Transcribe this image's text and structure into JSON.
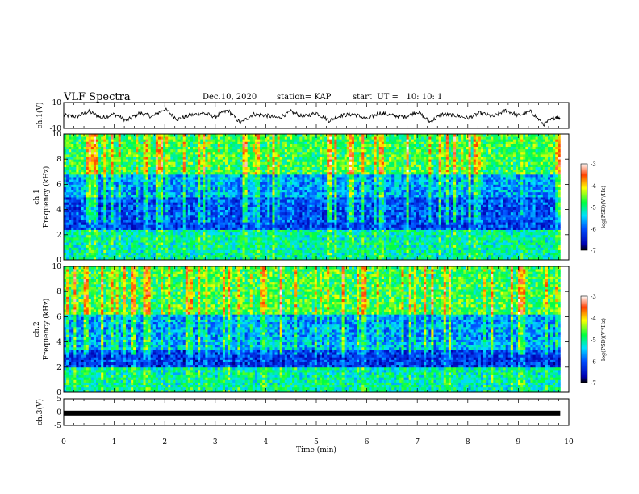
{
  "header": {
    "title": "VLF Spectra",
    "date": "Dec.10, 2020",
    "station": "station= KAP",
    "start": "start  UT =   10: 10: 1"
  },
  "chart_data": [
    {
      "type": "line",
      "ylabel": "ch.1(V)",
      "xlim": [
        0,
        9.83
      ],
      "ylim": [
        -10,
        10
      ],
      "y_ticks": [
        "10",
        "-10"
      ],
      "x": [
        0,
        0.25,
        0.5,
        0.75,
        1,
        1.25,
        1.5,
        1.75,
        2,
        2.25,
        2.5,
        2.75,
        3,
        3.25,
        3.5,
        3.75,
        4,
        4.25,
        4.5,
        4.75,
        5,
        5.25,
        5.5,
        5.75,
        6,
        6.25,
        6.5,
        6.75,
        7,
        7.25,
        7.5,
        7.75,
        8,
        8.25,
        8.5,
        8.75,
        9,
        9.25,
        9.5,
        9.75,
        9.83
      ],
      "y": [
        0,
        -1,
        3,
        -2,
        1,
        -4,
        2,
        -1,
        5,
        -3,
        0,
        2,
        -1,
        4,
        -6,
        1,
        0,
        -2,
        3,
        -1,
        2,
        -4,
        0,
        1,
        -3,
        2,
        0,
        -1,
        3,
        -5,
        1,
        0,
        -2,
        2,
        -1,
        4,
        0,
        3,
        -7,
        -1,
        -2
      ]
    },
    {
      "type": "heatmap",
      "ylabel": "ch.1\nFrequency (kHz)",
      "xlim": [
        0,
        9.83
      ],
      "ylim": [
        0,
        10
      ],
      "y_ticks": [
        "0",
        "2",
        "4",
        "6",
        "8",
        "10"
      ],
      "colorbar": {
        "label": "log(PSD)(V²/Hz)",
        "range": [
          -7,
          -3
        ],
        "ticks": [
          "-3",
          "-4",
          "-5",
          "-6",
          "-7"
        ]
      },
      "frequency_bands_khz": [
        [
          0,
          2.5,
          -5.2
        ],
        [
          2.5,
          5,
          -6.2
        ],
        [
          5,
          6.8,
          -5.8
        ],
        [
          6.8,
          10,
          -4.9
        ]
      ]
    },
    {
      "type": "heatmap",
      "ylabel": "ch.2\nFrequency (kHz)",
      "xlim": [
        0,
        9.83
      ],
      "ylim": [
        0,
        10
      ],
      "y_ticks": [
        "0",
        "2",
        "4",
        "6",
        "8",
        "10"
      ],
      "colorbar": {
        "label": "log(PSD)(V²/Hz)",
        "range": [
          -7,
          -3
        ],
        "ticks": [
          "-3",
          "-4",
          "-5",
          "-6",
          "-7"
        ]
      },
      "frequency_bands_khz": [
        [
          0,
          2,
          -5.2
        ],
        [
          2,
          3.4,
          -6.3
        ],
        [
          3.4,
          4.2,
          -5.7
        ],
        [
          4.2,
          6.2,
          -5.8
        ],
        [
          6.2,
          10,
          -4.9
        ]
      ]
    },
    {
      "type": "line",
      "ylabel": "ch.3(V)",
      "xlim": [
        0,
        9.83
      ],
      "ylim": [
        -5,
        5
      ],
      "y_ticks": [
        "5",
        "0",
        "-5"
      ],
      "x": [
        0,
        9.83
      ],
      "y": [
        -0.4,
        -0.4
      ]
    }
  ],
  "x_axis": {
    "label": "Time (min)",
    "ticks": [
      "0",
      "1",
      "2",
      "3",
      "4",
      "5",
      "6",
      "7",
      "8",
      "9",
      "10"
    ]
  }
}
